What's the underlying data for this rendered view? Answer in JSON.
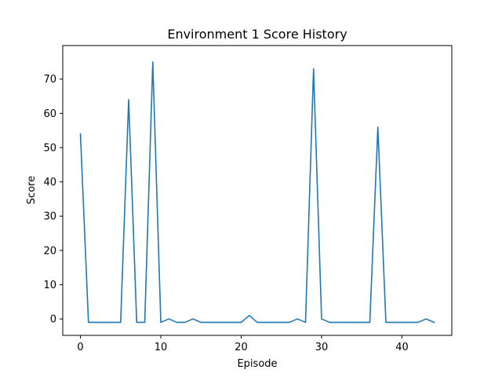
{
  "chart_data": {
    "type": "line",
    "title": "Environment 1 Score History",
    "xlabel": "Episode",
    "ylabel": "Score",
    "xlim": [
      -2.2,
      46.2
    ],
    "ylim": [
      -4.8,
      79.8
    ],
    "xticks": [
      0,
      10,
      20,
      30,
      40
    ],
    "yticks": [
      0,
      10,
      20,
      30,
      40,
      50,
      60,
      70
    ],
    "grid": false,
    "series": [
      {
        "color": "#1f77b4",
        "x": [
          0,
          1,
          2,
          3,
          4,
          5,
          6,
          7,
          8,
          9,
          10,
          11,
          12,
          13,
          14,
          15,
          16,
          17,
          18,
          19,
          20,
          21,
          22,
          23,
          24,
          25,
          26,
          27,
          28,
          29,
          30,
          31,
          32,
          33,
          34,
          35,
          36,
          37,
          38,
          39,
          40,
          41,
          42,
          43,
          44
        ],
        "y": [
          54,
          -1,
          -1,
          -1,
          -1,
          -1,
          64,
          -1,
          -1,
          75,
          -1,
          0,
          -1,
          -1,
          0,
          -1,
          -1,
          -1,
          -1,
          -1,
          -1,
          1,
          -1,
          -1,
          -1,
          -1,
          -1,
          0,
          -1,
          73,
          0,
          -1,
          -1,
          -1,
          -1,
          -1,
          -1,
          56,
          -1,
          -1,
          -1,
          -1,
          -1,
          0,
          -1
        ]
      }
    ]
  }
}
